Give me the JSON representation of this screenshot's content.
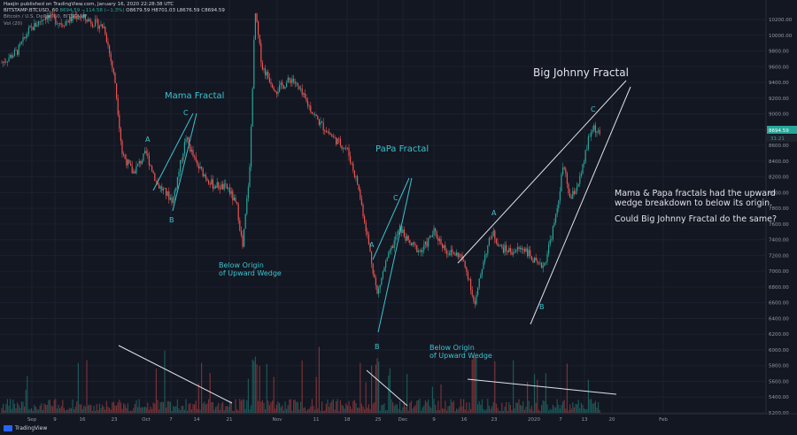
{
  "header": {
    "line1": "Haejin published on TradingView.com, January 16, 2020 22:28:38 UTC",
    "symbol": "BITSTAMP:BTCUSD, 60",
    "price": "8694.59",
    "change": "−114.58 (−1.3%)",
    "ohlc": "O8679.59 H8701.03 L8676.59 C8694.59",
    "title_line": "Bitcoin / U.S. Dollar, 60, BITSTAMP",
    "volume_line": "Vol (20)",
    "brand": "TradingView"
  },
  "annotations": {
    "big_johnny": "Big Johnny Fractal",
    "mama": "Mama Fractal",
    "papa": "PaPa Fractal",
    "origin1_a": "Below Origin",
    "origin1_b": "of Upward Wedge",
    "origin2_a": "Below Origin",
    "origin2_b": "of Upward Wedge",
    "note1": "Mama & Papa fractals had the upward",
    "note2": "wedge breakdown to below its origin.",
    "note3": "Could Big Johnny Fractal do the same?",
    "labels": {
      "mama_a": "A",
      "mama_b": "B",
      "mama_c": "C",
      "papa_a": "A",
      "papa_b": "B",
      "papa_c": "C",
      "bj_a": "A",
      "bj_b": "B",
      "bj_c": "C"
    }
  },
  "price_axis": {
    "ticks": [
      "10200.00",
      "10000.00",
      "9800.00",
      "9600.00",
      "9400.00",
      "9200.00",
      "9000.00",
      "8800.00",
      "8600.00",
      "8400.00",
      "8200.00",
      "8000.00",
      "7800.00",
      "7600.00",
      "7400.00",
      "7200.00",
      "7000.00",
      "6800.00",
      "6600.00",
      "6400.00",
      "6200.00",
      "6000.00",
      "5800.00",
      "5600.00",
      "5400.00",
      "5200.00"
    ],
    "current_price": "8694.59",
    "countdown": "31:21"
  },
  "time_axis": {
    "ticks": [
      "Sep",
      "9",
      "16",
      "23",
      "Oct",
      "7",
      "14",
      "21",
      "Nov",
      "11",
      "18",
      "25",
      "Dec",
      "9",
      "16",
      "23",
      "2020",
      "7",
      "13",
      "20",
      "Feb"
    ]
  },
  "colors": {
    "up": "#26a69a",
    "down": "#ef5350",
    "wedge": "#3cc4cf",
    "trend": "#d1d4dc"
  },
  "chart_data": {
    "type": "candlestick",
    "symbol": "BITSTAMP:BTCUSD",
    "interval": "60",
    "ylim": [
      5200,
      10250
    ],
    "close_path": [
      [
        "Sep",
        9650
      ],
      [
        "9",
        9850
      ],
      [
        "16",
        10250
      ],
      [
        "23",
        8450
      ],
      [
        "Oct",
        8250
      ],
      [
        "7",
        8050
      ],
      [
        "14",
        8350
      ],
      [
        "21",
        7450
      ],
      [
        "Nov",
        9450
      ],
      [
        "11",
        8850
      ],
      [
        "18",
        8400
      ],
      [
        "25",
        7100
      ],
      [
        "Dec",
        7500
      ],
      [
        "9",
        7450
      ],
      [
        "16",
        6750
      ],
      [
        "23",
        7300
      ],
      [
        "2020",
        7250
      ],
      [
        "7",
        8200
      ],
      [
        "13",
        8750
      ]
    ],
    "current_price": 8694.59
  }
}
